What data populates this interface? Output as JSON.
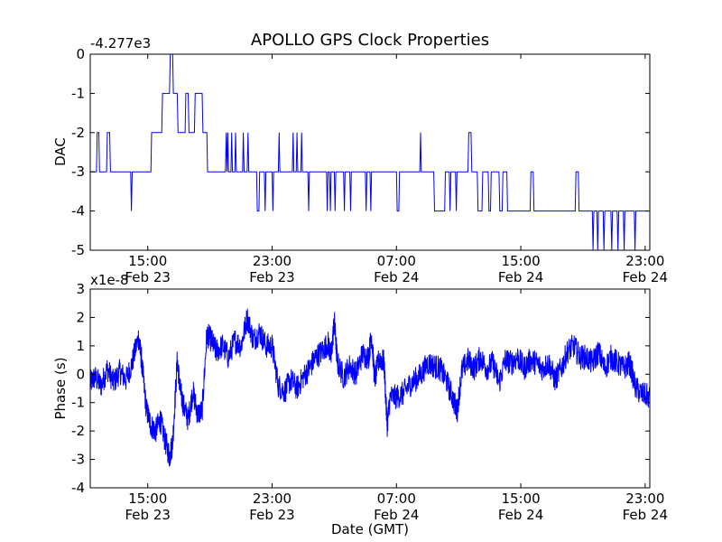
{
  "chart_data": [
    {
      "type": "line",
      "title": "APOLLO GPS Clock Properties",
      "xlabel": "",
      "ylabel": "DAC",
      "offset_label": "-4.277e3",
      "ylim": [
        -5,
        0
      ],
      "yticks": [
        "0",
        "-1",
        "-2",
        "-3",
        "-4",
        "-5"
      ],
      "xticks": [
        {
          "time": "15:00",
          "date": "Feb 23",
          "hour": 15
        },
        {
          "time": "23:00",
          "date": "Feb 23",
          "hour": 23
        },
        {
          "time": "07:00",
          "date": "Feb 24",
          "hour": 31
        },
        {
          "time": "15:00",
          "date": "Feb 24",
          "hour": 39
        },
        {
          "time": "23:00",
          "date": "Feb 24",
          "hour": 47
        }
      ],
      "xlim_hours": [
        11.3,
        47.3
      ],
      "line_color": "#0000ff",
      "series": [
        {
          "name": "DAC",
          "points": [
            [
              11.3,
              -3
            ],
            [
              11.7,
              -3
            ],
            [
              11.75,
              -2
            ],
            [
              11.85,
              -2
            ],
            [
              11.9,
              -3
            ],
            [
              12.35,
              -3
            ],
            [
              12.4,
              -2
            ],
            [
              12.55,
              -2
            ],
            [
              12.6,
              -3
            ],
            [
              13.9,
              -3
            ],
            [
              13.95,
              -4
            ],
            [
              14.0,
              -3
            ],
            [
              15.2,
              -3
            ],
            [
              15.25,
              -2
            ],
            [
              15.9,
              -2
            ],
            [
              15.95,
              -1
            ],
            [
              16.4,
              -1
            ],
            [
              16.45,
              0
            ],
            [
              16.6,
              0
            ],
            [
              16.65,
              -1
            ],
            [
              16.9,
              -1
            ],
            [
              16.95,
              -2
            ],
            [
              17.4,
              -2
            ],
            [
              17.45,
              -1
            ],
            [
              17.6,
              -1
            ],
            [
              17.65,
              -2
            ],
            [
              18.0,
              -2
            ],
            [
              18.05,
              -1
            ],
            [
              18.5,
              -1
            ],
            [
              18.55,
              -2
            ],
            [
              18.8,
              -2
            ],
            [
              18.85,
              -3
            ],
            [
              20.0,
              -3
            ],
            [
              20.05,
              -2
            ],
            [
              20.1,
              -3
            ],
            [
              20.15,
              -2
            ],
            [
              20.2,
              -3
            ],
            [
              20.35,
              -3
            ],
            [
              20.4,
              -2
            ],
            [
              20.45,
              -3
            ],
            [
              20.6,
              -3
            ],
            [
              20.65,
              -2
            ],
            [
              20.7,
              -3
            ],
            [
              21.1,
              -3
            ],
            [
              21.15,
              -2
            ],
            [
              21.2,
              -3
            ],
            [
              21.4,
              -3
            ],
            [
              21.45,
              -2
            ],
            [
              21.5,
              -3
            ],
            [
              22.0,
              -3
            ],
            [
              22.05,
              -4
            ],
            [
              22.15,
              -4
            ],
            [
              22.2,
              -3
            ],
            [
              22.5,
              -3
            ],
            [
              22.55,
              -4
            ],
            [
              22.6,
              -3
            ],
            [
              23.0,
              -3
            ],
            [
              23.05,
              -4
            ],
            [
              23.1,
              -3
            ],
            [
              23.4,
              -3
            ],
            [
              23.45,
              -2
            ],
            [
              23.5,
              -3
            ],
            [
              24.3,
              -3
            ],
            [
              24.35,
              -2
            ],
            [
              24.4,
              -3
            ],
            [
              24.55,
              -3
            ],
            [
              24.6,
              -2
            ],
            [
              24.65,
              -3
            ],
            [
              24.85,
              -3
            ],
            [
              24.9,
              -2
            ],
            [
              24.95,
              -3
            ],
            [
              25.3,
              -3
            ],
            [
              25.35,
              -4
            ],
            [
              25.4,
              -3
            ],
            [
              26.5,
              -3
            ],
            [
              26.55,
              -4
            ],
            [
              26.6,
              -3
            ],
            [
              26.7,
              -3
            ],
            [
              26.75,
              -4
            ],
            [
              26.8,
              -3
            ],
            [
              27.0,
              -3
            ],
            [
              27.05,
              -4
            ],
            [
              27.1,
              -3
            ],
            [
              27.6,
              -3
            ],
            [
              27.65,
              -4
            ],
            [
              27.7,
              -3
            ],
            [
              28.0,
              -3
            ],
            [
              28.05,
              -4
            ],
            [
              28.1,
              -3
            ],
            [
              29.0,
              -3
            ],
            [
              29.05,
              -4
            ],
            [
              29.1,
              -3
            ],
            [
              29.3,
              -3
            ],
            [
              29.35,
              -4
            ],
            [
              29.4,
              -3
            ],
            [
              31.0,
              -3
            ],
            [
              31.05,
              -4
            ],
            [
              31.15,
              -4
            ],
            [
              31.2,
              -3
            ],
            [
              32.5,
              -3
            ],
            [
              32.55,
              -2
            ],
            [
              32.6,
              -3
            ],
            [
              33.4,
              -3
            ],
            [
              33.45,
              -4
            ],
            [
              34.1,
              -4
            ],
            [
              34.15,
              -3
            ],
            [
              34.4,
              -3
            ],
            [
              34.45,
              -4
            ],
            [
              34.5,
              -3
            ],
            [
              34.8,
              -3
            ],
            [
              34.85,
              -4
            ],
            [
              34.9,
              -3
            ],
            [
              35.6,
              -3
            ],
            [
              35.65,
              -2
            ],
            [
              35.8,
              -2
            ],
            [
              35.85,
              -3
            ],
            [
              36.2,
              -3
            ],
            [
              36.25,
              -4
            ],
            [
              36.5,
              -4
            ],
            [
              36.55,
              -3
            ],
            [
              36.9,
              -3
            ],
            [
              36.95,
              -4
            ],
            [
              37.05,
              -4
            ],
            [
              37.1,
              -3
            ],
            [
              37.6,
              -3
            ],
            [
              37.65,
              -4
            ],
            [
              37.8,
              -4
            ],
            [
              37.85,
              -3
            ],
            [
              38.1,
              -3
            ],
            [
              38.15,
              -4
            ],
            [
              39.6,
              -4
            ],
            [
              39.65,
              -3
            ],
            [
              39.8,
              -3
            ],
            [
              39.85,
              -4
            ],
            [
              42.5,
              -4
            ],
            [
              42.55,
              -3
            ],
            [
              42.7,
              -3
            ],
            [
              42.75,
              -4
            ],
            [
              43.6,
              -4
            ],
            [
              43.65,
              -5
            ],
            [
              43.7,
              -4
            ],
            [
              43.9,
              -4
            ],
            [
              43.95,
              -5
            ],
            [
              44.0,
              -4
            ],
            [
              44.3,
              -4
            ],
            [
              44.35,
              -5
            ],
            [
              44.4,
              -4
            ],
            [
              44.8,
              -4
            ],
            [
              44.85,
              -5
            ],
            [
              44.9,
              -4
            ],
            [
              45.2,
              -4
            ],
            [
              45.25,
              -5
            ],
            [
              45.3,
              -4
            ],
            [
              45.6,
              -4
            ],
            [
              45.65,
              -5
            ],
            [
              45.7,
              -4
            ],
            [
              46.3,
              -4
            ],
            [
              46.35,
              -5
            ],
            [
              46.4,
              -4
            ],
            [
              47.3,
              -4
            ]
          ]
        }
      ]
    },
    {
      "type": "line",
      "title": "",
      "xlabel": "Date (GMT)",
      "ylabel": "Phase (s)",
      "offset_label": "x1e-8",
      "ylim": [
        -4,
        3
      ],
      "yticks": [
        "3",
        "2",
        "1",
        "0",
        "-1",
        "-2",
        "-3",
        "-4"
      ],
      "xticks": [
        {
          "time": "15:00",
          "date": "Feb 23",
          "hour": 15
        },
        {
          "time": "23:00",
          "date": "Feb 23",
          "hour": 23
        },
        {
          "time": "07:00",
          "date": "Feb 24",
          "hour": 31
        },
        {
          "time": "15:00",
          "date": "Feb 24",
          "hour": 39
        },
        {
          "time": "23:00",
          "date": "Feb 24",
          "hour": 47
        }
      ],
      "xlim_hours": [
        11.3,
        47.3
      ],
      "line_color": "#0000ff",
      "series": [
        {
          "name": "Phase",
          "points": [
            [
              11.3,
              -0.3
            ],
            [
              11.6,
              -0.1
            ],
            [
              12.0,
              -0.4
            ],
            [
              12.4,
              0.2
            ],
            [
              12.8,
              -0.3
            ],
            [
              13.2,
              0.1
            ],
            [
              13.6,
              -0.2
            ],
            [
              14.0,
              0.4
            ],
            [
              14.4,
              1.3
            ],
            [
              14.6,
              0.5
            ],
            [
              14.9,
              -1.2
            ],
            [
              15.2,
              -1.8
            ],
            [
              15.5,
              -2.0
            ],
            [
              15.8,
              -1.6
            ],
            [
              16.1,
              -2.3
            ],
            [
              16.4,
              -2.9
            ],
            [
              16.6,
              -2.4
            ],
            [
              16.9,
              0.5
            ],
            [
              17.1,
              -0.6
            ],
            [
              17.3,
              -1.1
            ],
            [
              17.6,
              -1.6
            ],
            [
              17.9,
              -0.6
            ],
            [
              18.2,
              -1.4
            ],
            [
              18.5,
              -1.3
            ],
            [
              18.8,
              1.4
            ],
            [
              19.1,
              1.2
            ],
            [
              19.4,
              0.8
            ],
            [
              19.8,
              1.0
            ],
            [
              20.2,
              0.6
            ],
            [
              20.6,
              1.2
            ],
            [
              21.0,
              1.0
            ],
            [
              21.4,
              2.0
            ],
            [
              21.8,
              1.2
            ],
            [
              22.2,
              1.5
            ],
            [
              22.6,
              1.0
            ],
            [
              23.0,
              1.0
            ],
            [
              23.4,
              -0.4
            ],
            [
              23.8,
              -0.6
            ],
            [
              24.2,
              -0.2
            ],
            [
              24.6,
              -0.5
            ],
            [
              25.0,
              -0.1
            ],
            [
              25.4,
              0.2
            ],
            [
              25.8,
              0.6
            ],
            [
              26.2,
              0.8
            ],
            [
              26.6,
              1.1
            ],
            [
              26.8,
              0.6
            ],
            [
              27.0,
              1.9
            ],
            [
              27.2,
              0.4
            ],
            [
              27.6,
              -0.1
            ],
            [
              28.0,
              0.3
            ],
            [
              28.4,
              0.0
            ],
            [
              28.8,
              0.7
            ],
            [
              29.2,
              0.6
            ],
            [
              29.4,
              1.4
            ],
            [
              29.6,
              -0.2
            ],
            [
              29.9,
              0.6
            ],
            [
              30.2,
              0.4
            ],
            [
              30.4,
              -1.8
            ],
            [
              30.6,
              -0.8
            ],
            [
              31.0,
              -0.8
            ],
            [
              31.4,
              -0.7
            ],
            [
              31.8,
              -0.4
            ],
            [
              32.2,
              -0.2
            ],
            [
              32.6,
              0.0
            ],
            [
              33.0,
              0.4
            ],
            [
              33.4,
              0.3
            ],
            [
              33.8,
              0.2
            ],
            [
              34.2,
              -0.2
            ],
            [
              34.6,
              -0.8
            ],
            [
              34.9,
              -1.3
            ],
            [
              35.2,
              0.1
            ],
            [
              35.6,
              0.5
            ],
            [
              36.0,
              0.2
            ],
            [
              36.4,
              0.6
            ],
            [
              36.8,
              0.2
            ],
            [
              37.2,
              0.4
            ],
            [
              37.6,
              -0.3
            ],
            [
              38.0,
              0.5
            ],
            [
              38.4,
              0.4
            ],
            [
              38.8,
              0.6
            ],
            [
              39.2,
              0.2
            ],
            [
              39.6,
              0.5
            ],
            [
              40.0,
              0.4
            ],
            [
              40.4,
              0.2
            ],
            [
              40.8,
              0.4
            ],
            [
              41.2,
              -0.2
            ],
            [
              41.6,
              0.2
            ],
            [
              42.0,
              0.8
            ],
            [
              42.4,
              1.0
            ],
            [
              42.8,
              0.6
            ],
            [
              43.2,
              0.6
            ],
            [
              43.6,
              0.4
            ],
            [
              44.0,
              0.8
            ],
            [
              44.4,
              0.2
            ],
            [
              44.8,
              0.6
            ],
            [
              45.2,
              0.4
            ],
            [
              45.6,
              0.2
            ],
            [
              46.0,
              0.4
            ],
            [
              46.4,
              -0.5
            ],
            [
              46.8,
              -0.7
            ],
            [
              47.3,
              -0.8
            ]
          ]
        }
      ]
    }
  ]
}
